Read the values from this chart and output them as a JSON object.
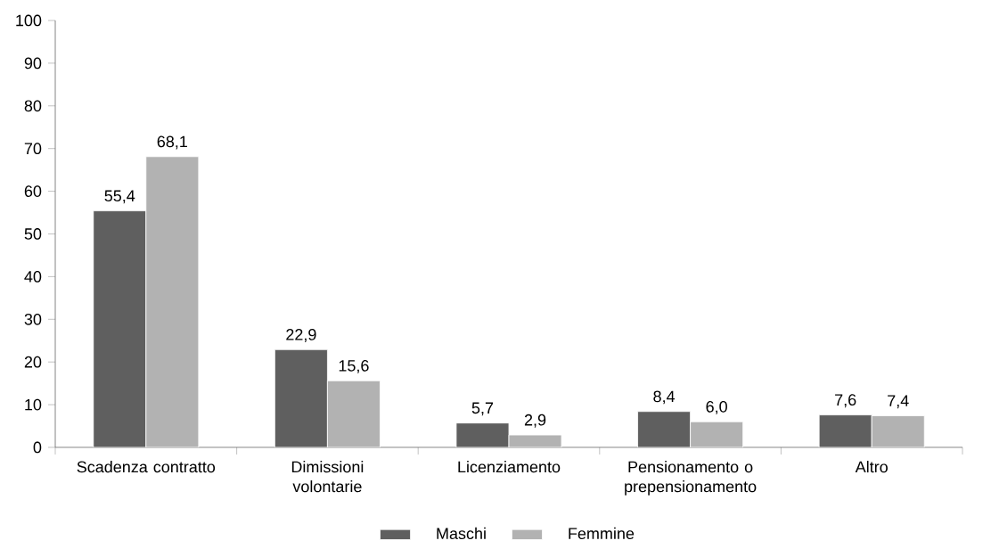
{
  "chart_data": {
    "type": "bar",
    "categories": [
      "Scadenza contratto",
      "Dimissioni volontarie",
      "Licenziamento",
      "Pensionamento o prepensionamento",
      "Altro"
    ],
    "series": [
      {
        "name": "Maschi",
        "color": "#5f5f5f",
        "values": [
          55.4,
          22.9,
          5.7,
          8.4,
          7.6
        ],
        "value_labels": [
          "55,4",
          "22,9",
          "5,7",
          "8,4",
          "7,6"
        ]
      },
      {
        "name": "Femmine",
        "color": "#b2b2b2",
        "values": [
          68.1,
          15.6,
          2.9,
          6.0,
          7.4
        ],
        "value_labels": [
          "68,1",
          "15,6",
          "2,9",
          "6,0",
          "7,4"
        ]
      }
    ],
    "ylim": [
      0,
      100
    ],
    "yticks": [
      0,
      10,
      20,
      30,
      40,
      50,
      60,
      70,
      80,
      90,
      100
    ],
    "legend": "bottom"
  }
}
